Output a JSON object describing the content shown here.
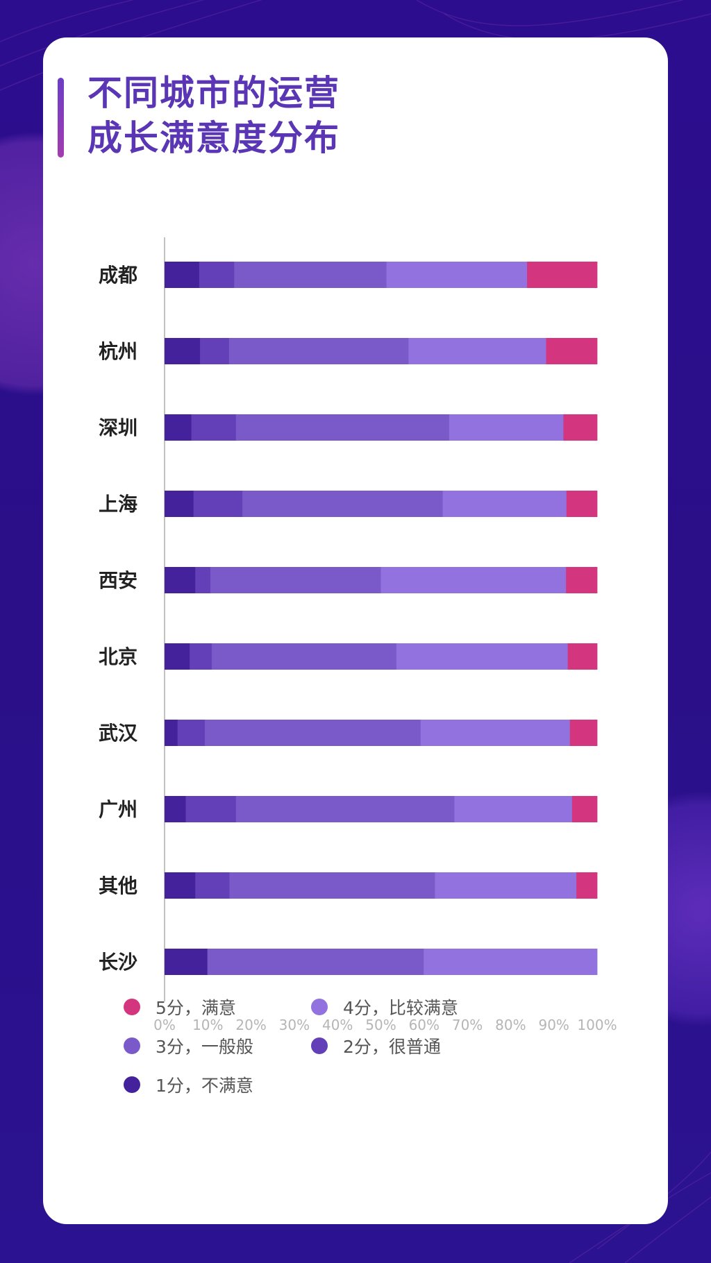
{
  "page": {
    "title": "不同城市的运营\n成长满意度分布"
  },
  "chart_data": {
    "type": "bar",
    "orientation": "horizontal",
    "stacked": true,
    "title": "不同城市的运营\n成长满意度分布",
    "categories": [
      "成都",
      "杭州",
      "深圳",
      "上海",
      "西安",
      "北京",
      "武汉",
      "广州",
      "其他",
      "长沙"
    ],
    "series": [
      {
        "name": "1分，不满意",
        "color": "#43229c",
        "values": [
          8,
          8.2,
          6.2,
          6.7,
          7.1,
          5.8,
          3.0,
          4.9,
          7.1,
          9.9
        ]
      },
      {
        "name": "2分，很普通",
        "color": "#6440b8",
        "values": [
          8.1,
          6.7,
          10.3,
          11.3,
          3.5,
          5.1,
          6.3,
          11.6,
          7.9,
          0
        ]
      },
      {
        "name": "3分，一般般",
        "color": "#7a5ac9",
        "values": [
          35.2,
          41.5,
          49.3,
          46.3,
          39.4,
          42.7,
          49.9,
          50.5,
          47.5,
          50.0
        ]
      },
      {
        "name": "4分，比较满意",
        "color": "#9272de",
        "values": [
          32.5,
          31.8,
          26.4,
          28.6,
          42.8,
          39.6,
          34.5,
          27.2,
          32.7,
          40.1
        ]
      },
      {
        "name": "5分，满意",
        "color": "#d3367e",
        "values": [
          16.2,
          11.8,
          7.8,
          7.1,
          7.2,
          6.8,
          6.3,
          5.8,
          4.8,
          0
        ]
      }
    ],
    "xlim": [
      0,
      100
    ],
    "xticks": [
      "0%",
      "10%",
      "20%",
      "30%",
      "40%",
      "50%",
      "60%",
      "70%",
      "80%",
      "90%",
      "100%"
    ],
    "legend": {
      "placement": "bottom",
      "order": [
        "5分，满意",
        "4分，比较满意",
        "3分，一般般",
        "2分，很普通",
        "1分，不满意"
      ]
    },
    "grid": false
  }
}
